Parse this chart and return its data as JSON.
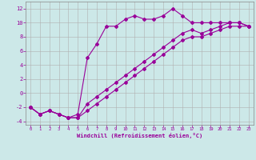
{
  "xlabel": "Windchill (Refroidissement éolien,°C)",
  "bg_color": "#cce8e8",
  "line_color": "#990099",
  "grid_color": "#b0b0b0",
  "xlim": [
    -0.5,
    23.5
  ],
  "ylim": [
    -4.5,
    13.0
  ],
  "xticks": [
    0,
    1,
    2,
    3,
    4,
    5,
    6,
    7,
    8,
    9,
    10,
    11,
    12,
    13,
    14,
    15,
    16,
    17,
    18,
    19,
    20,
    21,
    22,
    23
  ],
  "yticks": [
    -4,
    -2,
    0,
    2,
    4,
    6,
    8,
    10,
    12
  ],
  "line_zigzag_x": [
    0,
    1,
    2,
    3,
    4,
    5,
    6,
    7,
    8,
    9,
    10,
    11,
    12,
    13,
    14,
    15,
    16,
    17,
    18,
    19,
    20,
    21,
    22,
    23
  ],
  "line_zigzag_y": [
    -2,
    -3,
    -2.5,
    -3,
    -3.5,
    -3,
    5,
    7,
    9.5,
    9.5,
    10.5,
    11,
    10.5,
    10.5,
    11,
    12,
    11,
    10,
    10,
    10,
    10,
    10,
    10,
    9.5
  ],
  "line_diag1_x": [
    0,
    1,
    2,
    3,
    4,
    5,
    6,
    7,
    8,
    9,
    10,
    11,
    12,
    13,
    14,
    15,
    16,
    17,
    18,
    19,
    20,
    21,
    22,
    23
  ],
  "line_diag1_y": [
    -2,
    -3,
    -2.5,
    -3,
    -3.5,
    -3.5,
    -1.5,
    -0.5,
    0.5,
    1.5,
    2.5,
    3.5,
    4.5,
    5.5,
    6.5,
    7.5,
    8.5,
    9.0,
    8.5,
    9.0,
    9.5,
    10.0,
    10.0,
    9.5
  ],
  "line_diag2_x": [
    0,
    1,
    2,
    3,
    4,
    5,
    6,
    7,
    8,
    9,
    10,
    11,
    12,
    13,
    14,
    15,
    16,
    17,
    18,
    19,
    20,
    21,
    22,
    23
  ],
  "line_diag2_y": [
    -2,
    -3,
    -2.5,
    -3,
    -3.5,
    -3.5,
    -2.5,
    -1.5,
    -0.5,
    0.5,
    1.5,
    2.5,
    3.5,
    4.5,
    5.5,
    6.5,
    7.5,
    8.0,
    8.0,
    8.5,
    9.0,
    9.5,
    9.5,
    9.5
  ]
}
